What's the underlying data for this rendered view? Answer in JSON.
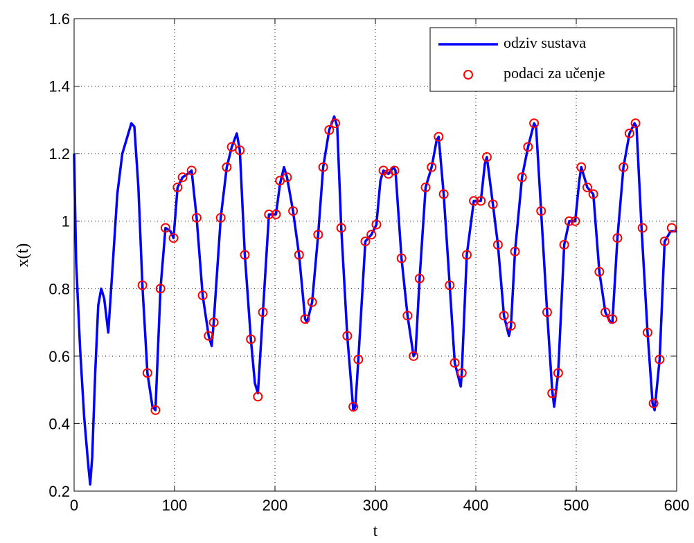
{
  "chart_data": {
    "type": "line",
    "xlabel": "t",
    "ylabel": "x(t)",
    "xlim": [
      0,
      600
    ],
    "xticks": [
      0,
      100,
      200,
      300,
      400,
      500,
      600
    ],
    "ylim": [
      0.2,
      1.6
    ],
    "yticks": [
      0.2,
      0.4,
      0.6,
      0.8,
      1,
      1.2,
      1.4,
      1.6
    ],
    "grid": true,
    "legend": "upper right",
    "series": [
      {
        "name": "odziv sustava",
        "type": "line",
        "color": "#0000ff",
        "x": [
          0,
          2,
          6,
          10,
          14,
          16,
          18,
          21,
          24,
          27,
          30,
          34,
          38,
          43,
          48,
          53,
          57,
          60,
          64,
          68,
          73,
          78,
          81,
          86,
          91,
          96,
          99,
          103,
          108,
          113,
          117,
          122,
          128,
          134,
          137,
          139,
          146,
          152,
          157,
          162,
          165,
          170,
          176,
          180,
          183,
          188,
          194,
          201,
          205,
          209,
          212,
          218,
          224,
          230,
          232,
          237,
          243,
          248,
          254,
          259,
          262,
          266,
          272,
          278,
          280,
          283,
          290,
          296,
          301,
          305,
          308,
          313,
          318,
          320,
          326,
          332,
          338,
          340,
          344,
          350,
          356,
          361,
          363,
          368,
          374,
          379,
          385,
          386,
          391,
          398,
          405,
          409,
          411,
          417,
          422,
          428,
          433,
          435,
          439,
          446,
          452,
          458,
          460,
          465,
          471,
          476,
          478,
          482,
          488,
          493,
          499,
          503,
          505,
          511,
          517,
          523,
          529,
          534,
          536,
          541,
          547,
          553,
          558,
          560,
          565,
          571,
          576,
          578,
          583,
          588,
          594,
          600
        ],
        "values": [
          1.2,
          0.88,
          0.62,
          0.42,
          0.28,
          0.22,
          0.3,
          0.55,
          0.75,
          0.8,
          0.77,
          0.67,
          0.85,
          1.08,
          1.2,
          1.25,
          1.29,
          1.28,
          1.1,
          0.81,
          0.55,
          0.45,
          0.44,
          0.8,
          0.98,
          0.97,
          0.95,
          1.1,
          1.13,
          1.14,
          1.15,
          1.01,
          0.78,
          0.66,
          0.63,
          0.7,
          1.01,
          1.16,
          1.22,
          1.26,
          1.21,
          0.9,
          0.65,
          0.52,
          0.49,
          0.73,
          1.02,
          1.02,
          1.11,
          1.16,
          1.13,
          1.03,
          0.9,
          0.71,
          0.7,
          0.76,
          0.96,
          1.16,
          1.27,
          1.31,
          1.28,
          0.98,
          0.66,
          0.44,
          0.45,
          0.59,
          0.94,
          0.96,
          0.99,
          1.12,
          1.15,
          1.14,
          1.16,
          1.15,
          0.89,
          0.72,
          0.6,
          0.61,
          0.83,
          1.1,
          1.16,
          1.24,
          1.25,
          1.08,
          0.81,
          0.58,
          0.51,
          0.55,
          0.9,
          1.06,
          1.06,
          1.17,
          1.19,
          1.05,
          0.93,
          0.72,
          0.66,
          0.69,
          0.91,
          1.13,
          1.22,
          1.29,
          1.28,
          1.03,
          0.73,
          0.5,
          0.45,
          0.55,
          0.93,
          1,
          1,
          1.12,
          1.16,
          1.1,
          1.08,
          0.85,
          0.73,
          0.7,
          0.7,
          0.95,
          1.16,
          1.26,
          1.29,
          1.28,
          0.98,
          0.67,
          0.46,
          0.44,
          0.59,
          0.94,
          0.97,
          0.97
        ]
      },
      {
        "name": "podaci za učenje",
        "type": "scatter",
        "color": "#ff0000",
        "x": [
          68,
          73,
          81,
          86,
          91,
          99,
          103,
          108,
          117,
          122,
          128,
          134,
          139,
          146,
          152,
          157,
          165,
          170,
          176,
          183,
          188,
          194,
          201,
          205,
          212,
          218,
          224,
          230,
          237,
          243,
          248,
          254,
          260,
          266,
          272,
          278,
          283,
          290,
          296,
          301,
          308,
          313,
          319,
          326,
          332,
          338,
          344,
          350,
          356,
          363,
          368,
          374,
          379,
          386,
          391,
          398,
          405,
          411,
          417,
          422,
          428,
          435,
          439,
          446,
          452,
          458,
          465,
          471,
          476,
          482,
          488,
          493,
          499,
          505,
          511,
          517,
          523,
          529,
          536,
          541,
          547,
          553,
          559,
          566,
          571,
          577,
          583,
          588,
          595
        ],
        "values": [
          0.81,
          0.55,
          0.44,
          0.8,
          0.98,
          0.95,
          1.1,
          1.13,
          1.15,
          1.01,
          0.78,
          0.66,
          0.7,
          1.01,
          1.16,
          1.22,
          1.21,
          0.9,
          0.65,
          0.48,
          0.73,
          1.02,
          1.02,
          1.12,
          1.13,
          1.03,
          0.9,
          0.71,
          0.76,
          0.96,
          1.16,
          1.27,
          1.29,
          0.98,
          0.66,
          0.45,
          0.59,
          0.94,
          0.96,
          0.99,
          1.15,
          1.14,
          1.15,
          0.89,
          0.72,
          0.6,
          0.83,
          1.1,
          1.16,
          1.25,
          1.08,
          0.81,
          0.58,
          0.55,
          0.9,
          1.06,
          1.06,
          1.19,
          1.05,
          0.93,
          0.72,
          0.69,
          0.91,
          1.13,
          1.22,
          1.29,
          1.03,
          0.73,
          0.49,
          0.55,
          0.93,
          1,
          1,
          1.16,
          1.1,
          1.08,
          0.85,
          0.73,
          0.71,
          0.95,
          1.16,
          1.26,
          1.29,
          0.98,
          0.67,
          0.46,
          0.59,
          0.94,
          0.98
        ]
      }
    ]
  }
}
